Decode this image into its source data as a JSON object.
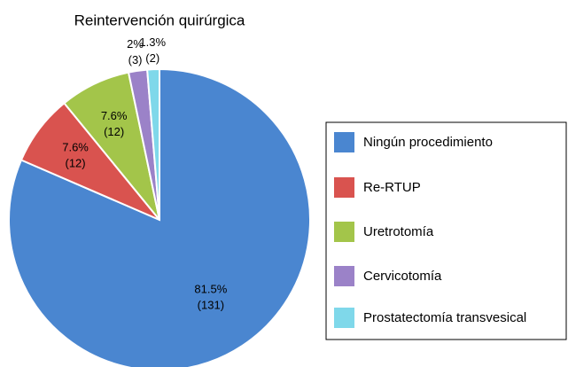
{
  "chart_data": {
    "type": "pie",
    "title": "Reintervención quirúrgica",
    "categories": [
      "Ningún procedimiento",
      "Re-RTUP",
      "Uretrotomía",
      "Cervicotomía",
      "Prostatectomía transvesical"
    ],
    "values": [
      81.5,
      7.6,
      7.6,
      2,
      1.3
    ],
    "value_labels": [
      "81.5%",
      "7.6%",
      "7.6%",
      "2%",
      "1.3%"
    ],
    "counts": [
      131,
      12,
      12,
      3,
      2
    ],
    "count_labels": [
      "(131)",
      "(12)",
      "(12)",
      "(3)",
      "(2)"
    ],
    "colors": [
      "#4a86d0",
      "#d9534f",
      "#a3c54a",
      "#9b82c8",
      "#7fd8ea"
    ],
    "legend": "right"
  }
}
